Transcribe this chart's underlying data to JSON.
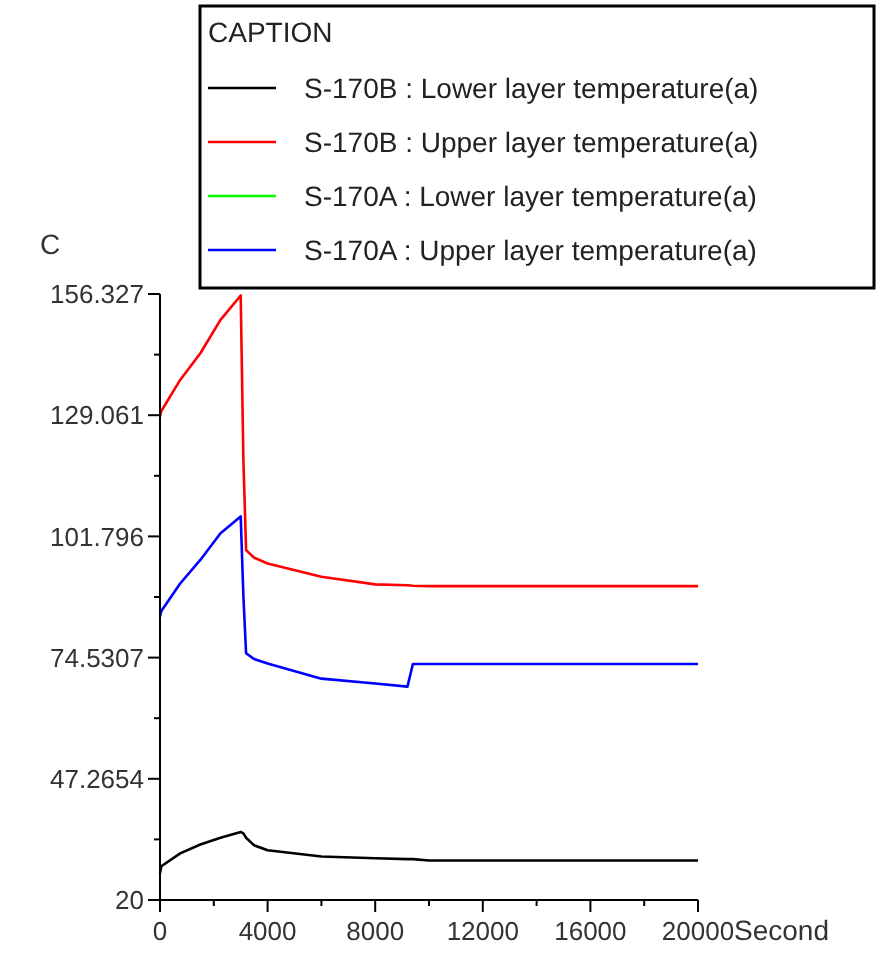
{
  "chart_data": {
    "type": "line",
    "xlabel": "Second",
    "ylabel": "C",
    "legend_title": "CAPTION",
    "legend": "top right",
    "grid": false,
    "marker": "none",
    "line_style": "solid",
    "xlim": [
      0,
      20000
    ],
    "xticks": [
      0,
      {
        "value": 2000,
        "label": null
      },
      4000,
      {
        "value": 6000,
        "label": null
      },
      8000,
      {
        "value": 10000,
        "label": null
      },
      12000,
      {
        "value": 14000,
        "label": null
      },
      16000,
      {
        "value": 18000,
        "label": null
      },
      20000
    ],
    "ylim": [
      20,
      156.327
    ],
    "yticks": [
      20,
      {
        "value": 33.6327,
        "label": null
      },
      47.2654,
      {
        "value": 60.898,
        "label": null
      },
      74.5307,
      {
        "value": 88.163,
        "label": null
      },
      101.796,
      {
        "value": 115.43,
        "label": null
      },
      129.061,
      {
        "value": 142.69,
        "label": null
      },
      156.327
    ],
    "x": [
      0,
      50,
      750,
      1500,
      2250,
      3000,
      3100,
      3200,
      3500,
      4000,
      6000,
      8000,
      9200,
      9400,
      10000,
      20000
    ],
    "series": [
      {
        "name": "S-170B : Lower layer temperature(a)",
        "color": "#000000",
        "values": [
          26,
          27.6,
          30.5,
          32.5,
          34,
          35.3,
          35,
          34,
          32.3,
          31.2,
          29.8,
          29.4,
          29.2,
          29.2,
          28.9,
          28.9
        ]
      },
      {
        "name": "S-170B : Upper layer temperature(a)",
        "color": "#ff0000",
        "values": [
          128.8,
          130,
          137,
          143,
          150.5,
          156,
          119,
          98.7,
          97,
          95.7,
          92.7,
          91,
          90.8,
          90.7,
          90.6,
          90.6
        ]
      },
      {
        "name": "S-170A : Lower layer temperature(a)",
        "color": "#00ff00",
        "values": [
          null,
          null,
          null,
          null,
          null,
          null,
          null,
          null,
          null,
          null,
          null,
          null,
          null,
          null,
          null,
          null
        ]
      },
      {
        "name": "S-170A : Upper layer temperature(a)",
        "color": "#0000ff",
        "values": [
          83.8,
          85,
          91.2,
          96.5,
          102.5,
          106.3,
          88.4,
          75.5,
          74.2,
          73.2,
          69.8,
          68.7,
          68,
          73.1,
          73.1,
          73.1
        ]
      }
    ]
  }
}
